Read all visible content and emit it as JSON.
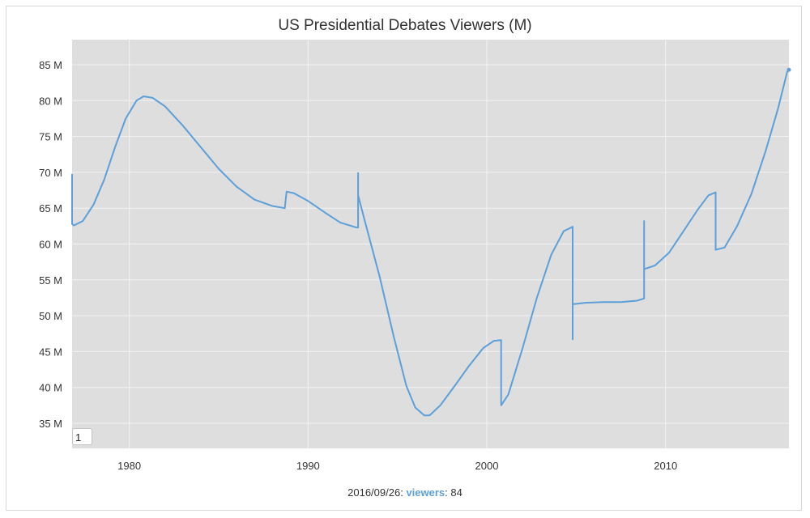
{
  "chart_data": {
    "type": "line",
    "title": "US Presidential Debates Viewers (M)",
    "xlabel": "",
    "ylabel": "",
    "xlim": [
      1976.8,
      2016.9
    ],
    "ylim": [
      31.5,
      88.5
    ],
    "grid": true,
    "y_ticks": [
      35,
      40,
      45,
      50,
      55,
      60,
      65,
      70,
      75,
      80,
      85
    ],
    "y_tick_labels": [
      "35 M",
      "40 M",
      "45 M",
      "50 M",
      "55 M",
      "60 M",
      "65 M",
      "70 M",
      "75 M",
      "80 M",
      "85 M"
    ],
    "x_ticks": [
      1980,
      1990,
      2000,
      2010
    ],
    "x_tick_labels": [
      "1980",
      "1990",
      "2000",
      "2010"
    ],
    "line_color": "#5d9fd8",
    "background_color": "#dedede",
    "series": [
      {
        "name": "viewers",
        "points": [
          [
            1976.8,
            69.7
          ],
          [
            1976.8,
            62.8
          ],
          [
            1976.9,
            62.6
          ],
          [
            1977.4,
            63.2
          ],
          [
            1978.0,
            65.5
          ],
          [
            1978.6,
            69.0
          ],
          [
            1979.2,
            73.5
          ],
          [
            1979.8,
            77.5
          ],
          [
            1980.4,
            80.0
          ],
          [
            1980.8,
            80.6
          ],
          [
            1981.3,
            80.4
          ],
          [
            1982.0,
            79.2
          ],
          [
            1983.0,
            76.5
          ],
          [
            1984.0,
            73.5
          ],
          [
            1985.0,
            70.5
          ],
          [
            1986.0,
            68.0
          ],
          [
            1987.0,
            66.2
          ],
          [
            1988.0,
            65.3
          ],
          [
            1988.7,
            65.0
          ],
          [
            1988.8,
            67.3
          ],
          [
            1989.2,
            67.1
          ],
          [
            1990.0,
            66.0
          ],
          [
            1991.0,
            64.3
          ],
          [
            1991.8,
            63.0
          ],
          [
            1992.7,
            62.3
          ],
          [
            1992.8,
            62.3
          ],
          [
            1992.8,
            69.9
          ],
          [
            1992.8,
            66.8
          ],
          [
            1993.2,
            63.0
          ],
          [
            1994.0,
            55.5
          ],
          [
            1994.8,
            47.0
          ],
          [
            1995.5,
            40.2
          ],
          [
            1996.0,
            37.2
          ],
          [
            1996.5,
            36.1
          ],
          [
            1996.8,
            36.1
          ],
          [
            1997.4,
            37.5
          ],
          [
            1998.2,
            40.2
          ],
          [
            1999.0,
            43.0
          ],
          [
            1999.8,
            45.5
          ],
          [
            2000.4,
            46.5
          ],
          [
            2000.8,
            46.6
          ],
          [
            2000.8,
            37.5
          ],
          [
            2001.2,
            39.0
          ],
          [
            2002.0,
            45.5
          ],
          [
            2002.8,
            52.5
          ],
          [
            2003.6,
            58.5
          ],
          [
            2004.3,
            61.8
          ],
          [
            2004.8,
            62.4
          ],
          [
            2004.8,
            46.7
          ],
          [
            2004.8,
            51.6
          ],
          [
            2005.5,
            51.8
          ],
          [
            2006.5,
            51.9
          ],
          [
            2007.5,
            51.9
          ],
          [
            2008.4,
            52.1
          ],
          [
            2008.8,
            52.4
          ],
          [
            2008.8,
            63.2
          ],
          [
            2008.8,
            56.5
          ],
          [
            2009.4,
            57.0
          ],
          [
            2010.2,
            58.8
          ],
          [
            2011.0,
            61.8
          ],
          [
            2011.8,
            64.8
          ],
          [
            2012.4,
            66.8
          ],
          [
            2012.8,
            67.2
          ],
          [
            2012.8,
            59.2
          ],
          [
            2013.3,
            59.5
          ],
          [
            2014.0,
            62.5
          ],
          [
            2014.8,
            67.0
          ],
          [
            2015.6,
            73.0
          ],
          [
            2016.3,
            79.0
          ],
          [
            2016.8,
            84.0
          ],
          [
            2016.9,
            84.3
          ]
        ]
      }
    ],
    "roller_value": "1",
    "legend": {
      "date": "2016/09/26",
      "separator": ": ",
      "series_name": "viewers",
      "value_prefix": ": ",
      "value": "84"
    }
  }
}
